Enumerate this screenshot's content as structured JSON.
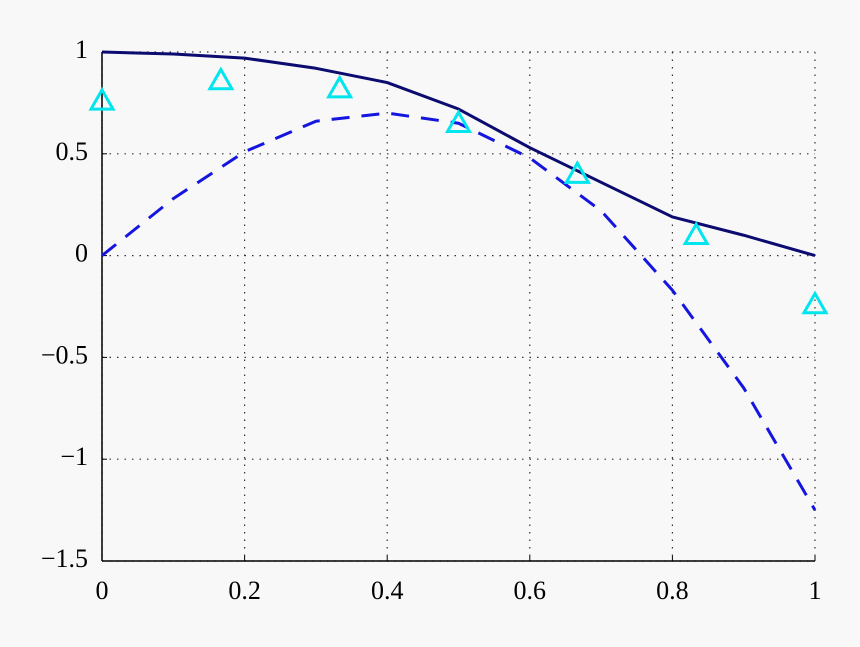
{
  "chart_data": {
    "type": "line",
    "xlim": [
      0,
      1
    ],
    "ylim": [
      -1.5,
      1
    ],
    "xticks": [
      0,
      0.2,
      0.4,
      0.6,
      0.8,
      1
    ],
    "yticks": [
      {
        "value": -1.5,
        "label": "−1.5"
      },
      {
        "value": -1,
        "label": "−1"
      },
      {
        "value": -0.5,
        "label": "−0.5"
      },
      0,
      0.5,
      1
    ],
    "grid": true,
    "series": [
      {
        "color": "#0b0b70",
        "style": "solid",
        "x": [
          0,
          0.1,
          0.2,
          0.3,
          0.4,
          0.5,
          0.6,
          0.7,
          0.8,
          0.9,
          1
        ],
        "values": [
          1,
          0.99,
          0.97,
          0.92,
          0.85,
          0.72,
          0.53,
          0.36,
          0.19,
          0.1,
          0
        ]
      },
      {
        "color": "#1515e0",
        "style": "dashed",
        "x": [
          0,
          0.1,
          0.2,
          0.3,
          0.4,
          0.5,
          0.6,
          0.7,
          0.8,
          0.9,
          1
        ],
        "values": [
          0,
          0.28,
          0.51,
          0.66,
          0.7,
          0.65,
          0.48,
          0.22,
          -0.17,
          -0.65,
          -1.25
        ]
      },
      {
        "color": "#00e5ee",
        "style": "triangle",
        "x": [
          0,
          0.1667,
          0.3333,
          0.5,
          0.6667,
          0.8333,
          1
        ],
        "values": [
          0.76,
          0.86,
          0.82,
          0.65,
          0.4,
          0.1,
          -0.24
        ]
      }
    ]
  }
}
